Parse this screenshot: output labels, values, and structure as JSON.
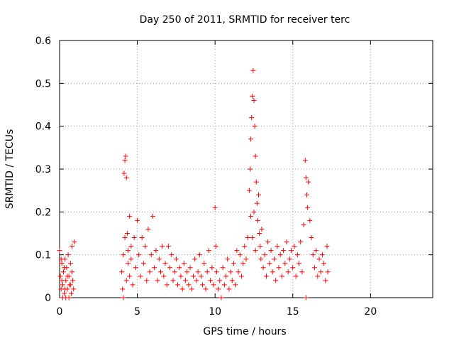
{
  "chart_data": {
    "type": "scatter",
    "title": "Day 250 of 2011, SRMTID for receiver terc",
    "xlabel": "GPS time / hours",
    "ylabel": "SRMTID / TECUs",
    "xlim": [
      0,
      24
    ],
    "ylim": [
      0,
      0.6
    ],
    "xticks": [
      0,
      5,
      10,
      15,
      20
    ],
    "yticks": [
      0,
      0.1,
      0.2,
      0.3,
      0.4,
      0.5,
      0.6
    ],
    "grid": true,
    "marker": "plus",
    "color": "#ff0000",
    "series": [
      {
        "points": [
          [
            0.0,
            0.11
          ],
          [
            0.05,
            0.05
          ],
          [
            0.1,
            0.02
          ],
          [
            0.15,
            0.08
          ],
          [
            0.2,
            0.03
          ],
          [
            0.25,
            0.06
          ],
          [
            0.3,
            0.01
          ],
          [
            0.35,
            0.09
          ],
          [
            0.4,
            0.04
          ],
          [
            0.45,
            0.07
          ],
          [
            0.5,
            0.02
          ],
          [
            0.55,
            0.1
          ],
          [
            0.6,
            0.05
          ],
          [
            0.65,
            0.03
          ],
          [
            0.7,
            0.08
          ],
          [
            0.75,
            0.01
          ],
          [
            0.8,
            0.06
          ],
          [
            0.85,
            0.04
          ],
          [
            0.9,
            0.02
          ],
          [
            0.95,
            0.13
          ],
          [
            0.8,
            0.12
          ],
          [
            0.1,
            0.09
          ],
          [
            0.2,
            0.0
          ],
          [
            0.4,
            0.0
          ],
          [
            0.6,
            0.0
          ],
          [
            0.3,
            0.07
          ],
          [
            0.5,
            0.05
          ],
          [
            0.7,
            0.03
          ],
          [
            0.15,
            0.04
          ],
          [
            0.35,
            0.02
          ],
          [
            4.0,
            0.06
          ],
          [
            4.1,
            0.1
          ],
          [
            4.15,
            0.29
          ],
          [
            4.2,
            0.32
          ],
          [
            4.25,
            0.33
          ],
          [
            4.3,
            0.28
          ],
          [
            4.35,
            0.15
          ],
          [
            4.4,
            0.08
          ],
          [
            4.5,
            0.19
          ],
          [
            4.6,
            0.12
          ],
          [
            4.05,
            0.02
          ],
          [
            4.1,
            0.0
          ],
          [
            4.2,
            0.14
          ],
          [
            4.3,
            0.04
          ],
          [
            4.4,
            0.11
          ],
          [
            4.5,
            0.05
          ],
          [
            4.6,
            0.09
          ],
          [
            4.7,
            0.03
          ],
          [
            4.8,
            0.14
          ],
          [
            4.9,
            0.07
          ],
          [
            5.0,
            0.18
          ],
          [
            5.1,
            0.1
          ],
          [
            5.2,
            0.05
          ],
          [
            5.3,
            0.14
          ],
          [
            5.4,
            0.08
          ],
          [
            5.5,
            0.12
          ],
          [
            5.6,
            0.04
          ],
          [
            5.7,
            0.16
          ],
          [
            5.8,
            0.06
          ],
          [
            5.9,
            0.1
          ],
          [
            6.0,
            0.19
          ],
          [
            6.1,
            0.07
          ],
          [
            6.2,
            0.11
          ],
          [
            6.3,
            0.04
          ],
          [
            6.4,
            0.09
          ],
          [
            6.5,
            0.06
          ],
          [
            6.6,
            0.12
          ],
          [
            6.7,
            0.05
          ],
          [
            6.8,
            0.08
          ],
          [
            6.9,
            0.03
          ],
          [
            7.0,
            0.12
          ],
          [
            7.1,
            0.07
          ],
          [
            7.2,
            0.1
          ],
          [
            7.3,
            0.04
          ],
          [
            7.4,
            0.06
          ],
          [
            7.5,
            0.09
          ],
          [
            7.6,
            0.03
          ],
          [
            7.7,
            0.07
          ],
          [
            7.8,
            0.05
          ],
          [
            7.9,
            0.02
          ],
          [
            8.0,
            0.08
          ],
          [
            8.1,
            0.04
          ],
          [
            8.2,
            0.06
          ],
          [
            8.3,
            0.03
          ],
          [
            8.4,
            0.07
          ],
          [
            8.5,
            0.02
          ],
          [
            8.6,
            0.05
          ],
          [
            8.7,
            0.09
          ],
          [
            8.8,
            0.04
          ],
          [
            8.9,
            0.06
          ],
          [
            9.0,
            0.1
          ],
          [
            9.1,
            0.05
          ],
          [
            9.2,
            0.03
          ],
          [
            9.3,
            0.08
          ],
          [
            9.4,
            0.02
          ],
          [
            9.5,
            0.06
          ],
          [
            9.6,
            0.11
          ],
          [
            9.7,
            0.04
          ],
          [
            9.8,
            0.07
          ],
          [
            9.9,
            0.03
          ],
          [
            10.0,
            0.21
          ],
          [
            10.05,
            0.12
          ],
          [
            10.1,
            0.06
          ],
          [
            10.2,
            0.02
          ],
          [
            10.3,
            0.04
          ],
          [
            10.4,
            0.0
          ],
          [
            10.5,
            0.07
          ],
          [
            10.6,
            0.03
          ],
          [
            10.7,
            0.05
          ],
          [
            10.8,
            0.09
          ],
          [
            10.9,
            0.02
          ],
          [
            11.0,
            0.06
          ],
          [
            11.1,
            0.04
          ],
          [
            11.2,
            0.08
          ],
          [
            11.3,
            0.03
          ],
          [
            11.4,
            0.11
          ],
          [
            11.5,
            0.06
          ],
          [
            11.6,
            0.1
          ],
          [
            11.7,
            0.05
          ],
          [
            11.8,
            0.08
          ],
          [
            11.9,
            0.12
          ],
          [
            12.0,
            0.09
          ],
          [
            12.1,
            0.14
          ],
          [
            12.2,
            0.25
          ],
          [
            12.25,
            0.3
          ],
          [
            12.3,
            0.37
          ],
          [
            12.35,
            0.42
          ],
          [
            12.4,
            0.47
          ],
          [
            12.45,
            0.53
          ],
          [
            12.5,
            0.46
          ],
          [
            12.55,
            0.4
          ],
          [
            12.6,
            0.33
          ],
          [
            12.65,
            0.27
          ],
          [
            12.7,
            0.22
          ],
          [
            12.75,
            0.18
          ],
          [
            12.8,
            0.24
          ],
          [
            12.85,
            0.15
          ],
          [
            12.9,
            0.12
          ],
          [
            12.95,
            0.09
          ],
          [
            13.0,
            0.16
          ],
          [
            12.3,
            0.19
          ],
          [
            12.4,
            0.14
          ],
          [
            12.5,
            0.2
          ],
          [
            12.6,
            0.11
          ],
          [
            13.1,
            0.07
          ],
          [
            13.2,
            0.1
          ],
          [
            13.3,
            0.05
          ],
          [
            13.4,
            0.13
          ],
          [
            13.5,
            0.08
          ],
          [
            13.6,
            0.11
          ],
          [
            13.7,
            0.06
          ],
          [
            13.8,
            0.09
          ],
          [
            13.9,
            0.04
          ],
          [
            14.0,
            0.12
          ],
          [
            14.1,
            0.07
          ],
          [
            14.2,
            0.1
          ],
          [
            14.3,
            0.05
          ],
          [
            14.4,
            0.11
          ],
          [
            14.5,
            0.08
          ],
          [
            14.6,
            0.13
          ],
          [
            14.7,
            0.06
          ],
          [
            14.8,
            0.09
          ],
          [
            14.9,
            0.11
          ],
          [
            15.0,
            0.07
          ],
          [
            15.1,
            0.12
          ],
          [
            15.2,
            0.05
          ],
          [
            15.3,
            0.1
          ],
          [
            15.4,
            0.08
          ],
          [
            15.5,
            0.13
          ],
          [
            15.6,
            0.06
          ],
          [
            15.7,
            0.17
          ],
          [
            15.8,
            0.32
          ],
          [
            15.85,
            0.28
          ],
          [
            15.9,
            0.24
          ],
          [
            15.95,
            0.21
          ],
          [
            16.0,
            0.27
          ],
          [
            16.1,
            0.18
          ],
          [
            16.2,
            0.14
          ],
          [
            16.3,
            0.1
          ],
          [
            15.85,
            0.0
          ],
          [
            16.4,
            0.07
          ],
          [
            16.5,
            0.11
          ],
          [
            16.6,
            0.05
          ],
          [
            16.7,
            0.09
          ],
          [
            16.8,
            0.06
          ],
          [
            16.9,
            0.1
          ],
          [
            17.0,
            0.08
          ],
          [
            17.1,
            0.04
          ],
          [
            17.2,
            0.12
          ],
          [
            17.25,
            0.06
          ]
        ]
      }
    ]
  }
}
